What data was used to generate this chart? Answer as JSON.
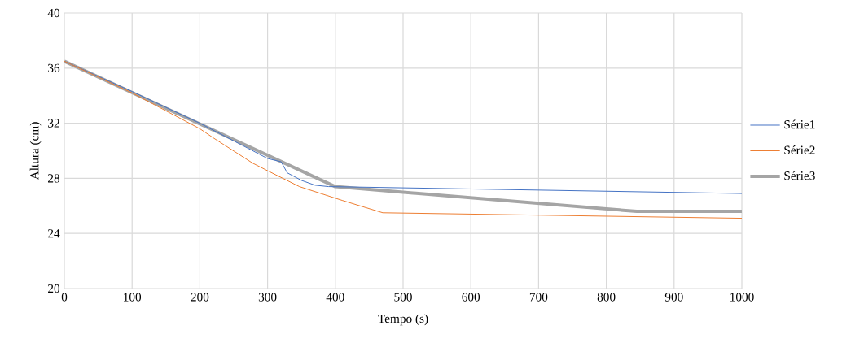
{
  "chart_data": {
    "type": "line",
    "xlabel": "Tempo (s)",
    "ylabel": "Altura (cm)",
    "xlim": [
      0,
      1000
    ],
    "xticks": [
      0,
      100,
      200,
      300,
      400,
      500,
      600,
      700,
      800,
      900,
      1000
    ],
    "ylim": [
      20,
      40
    ],
    "yticks": [
      20,
      24,
      28,
      32,
      36,
      40
    ],
    "grid": true,
    "legend": "right",
    "marker": "none",
    "series": [
      {
        "name": "Série1",
        "color": "#4472c4",
        "x": [
          0,
          100,
          200,
          300,
          320,
          329,
          350,
          370,
          390,
          1000
        ],
        "values": [
          36.5,
          34.3,
          32.0,
          29.44,
          29.2,
          28.4,
          27.85,
          27.5,
          27.4,
          26.9
        ]
      },
      {
        "name": "Série2",
        "color": "#ed7d31",
        "x": [
          0,
          100,
          200,
          221,
          278,
          300,
          347,
          410,
          470,
          1000
        ],
        "values": [
          36.5,
          34.2,
          31.6,
          30.9,
          29.1,
          28.55,
          27.4,
          26.4,
          25.5,
          25.1
        ]
      },
      {
        "name": "Série3",
        "color": "#a5a5a5",
        "x": [
          0,
          400,
          845,
          1000
        ],
        "values": [
          36.5,
          27.4,
          25.6,
          25.6
        ]
      }
    ]
  }
}
